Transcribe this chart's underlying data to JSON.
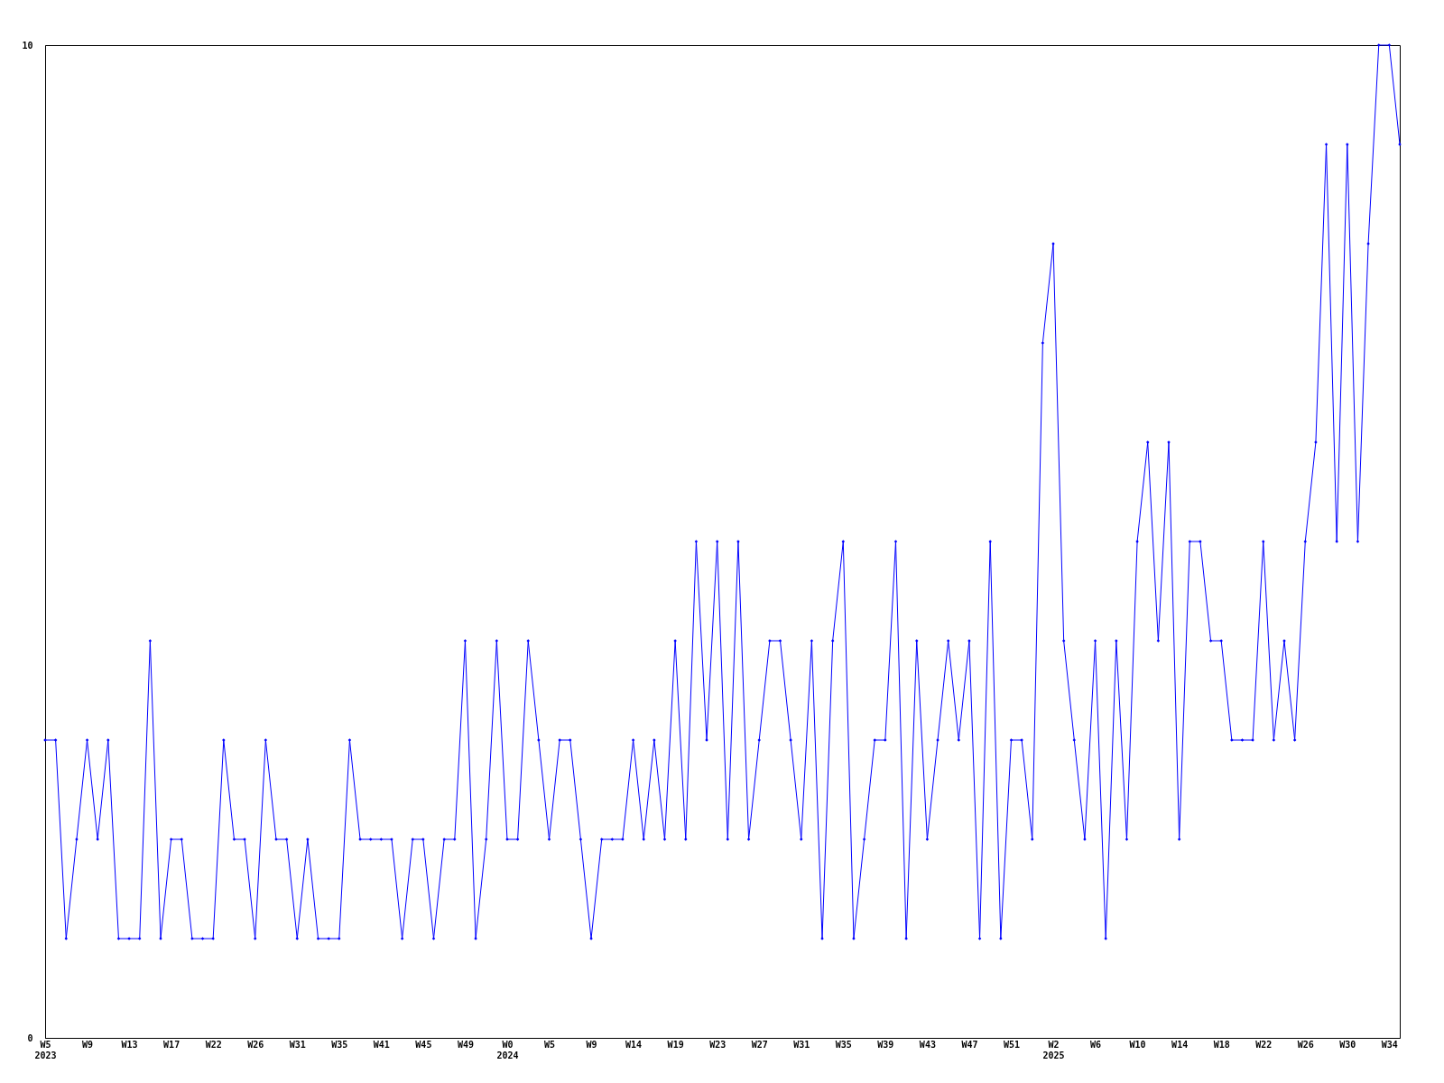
{
  "chart_data": {
    "type": "line",
    "categories": [
      "W5\n2023",
      null,
      null,
      null,
      "W9",
      null,
      null,
      null,
      "W13",
      null,
      null,
      null,
      "W17",
      null,
      null,
      null,
      "W22",
      null,
      null,
      null,
      "W26",
      null,
      null,
      null,
      "W31",
      null,
      null,
      null,
      "W35",
      null,
      null,
      null,
      "W41",
      null,
      null,
      null,
      "W45",
      null,
      null,
      null,
      "W49",
      null,
      null,
      null,
      "W0\n2024",
      null,
      null,
      null,
      "W5",
      null,
      null,
      null,
      "W9",
      null,
      null,
      null,
      "W14",
      null,
      null,
      null,
      "W19",
      null,
      null,
      null,
      "W23",
      null,
      null,
      null,
      "W27",
      null,
      null,
      null,
      "W31",
      null,
      null,
      null,
      "W35",
      null,
      null,
      null,
      "W39",
      null,
      null,
      null,
      "W43",
      null,
      null,
      null,
      "W47",
      null,
      null,
      null,
      "W51",
      null,
      null,
      null,
      "W2\n2025",
      null,
      null,
      null,
      "W6",
      null,
      null,
      null,
      "W10",
      null,
      null,
      null,
      "W14",
      null,
      null,
      null,
      "W18",
      null,
      null,
      null,
      "W22",
      null,
      null,
      null,
      "W26",
      null,
      null,
      null,
      "W30",
      null,
      null,
      null,
      "W34",
      null
    ],
    "series": [
      {
        "color": "#0000ff",
        "values": [
          3,
          3,
          1,
          2,
          3,
          2,
          3,
          1,
          1,
          1,
          4,
          1,
          2,
          2,
          1,
          1,
          1,
          3,
          2,
          2,
          1,
          3,
          2,
          2,
          1,
          2,
          1,
          1,
          1,
          3,
          2,
          2,
          2,
          2,
          1,
          2,
          2,
          1,
          2,
          2,
          4,
          1,
          2,
          4,
          2,
          2,
          4,
          3,
          2,
          3,
          3,
          2,
          1,
          2,
          2,
          2,
          3,
          2,
          3,
          2,
          4,
          2,
          5,
          3,
          5,
          2,
          5,
          2,
          3,
          4,
          4,
          3,
          2,
          4,
          1,
          4,
          5,
          1,
          2,
          3,
          3,
          5,
          1,
          4,
          2,
          3,
          4,
          3,
          4,
          1,
          5,
          1,
          3,
          3,
          2,
          7,
          8,
          4,
          3,
          2,
          4,
          1,
          4,
          2,
          5,
          6,
          4,
          6,
          2,
          5,
          5,
          4,
          4,
          3,
          3,
          3,
          5,
          3,
          4,
          3,
          5,
          6,
          9,
          5,
          9,
          5,
          8,
          10,
          10,
          9
        ]
      }
    ],
    "ylim": [
      0,
      10
    ],
    "yticks": [
      0,
      10
    ],
    "grid": false,
    "marker": "diamond",
    "line_style": "solid"
  }
}
